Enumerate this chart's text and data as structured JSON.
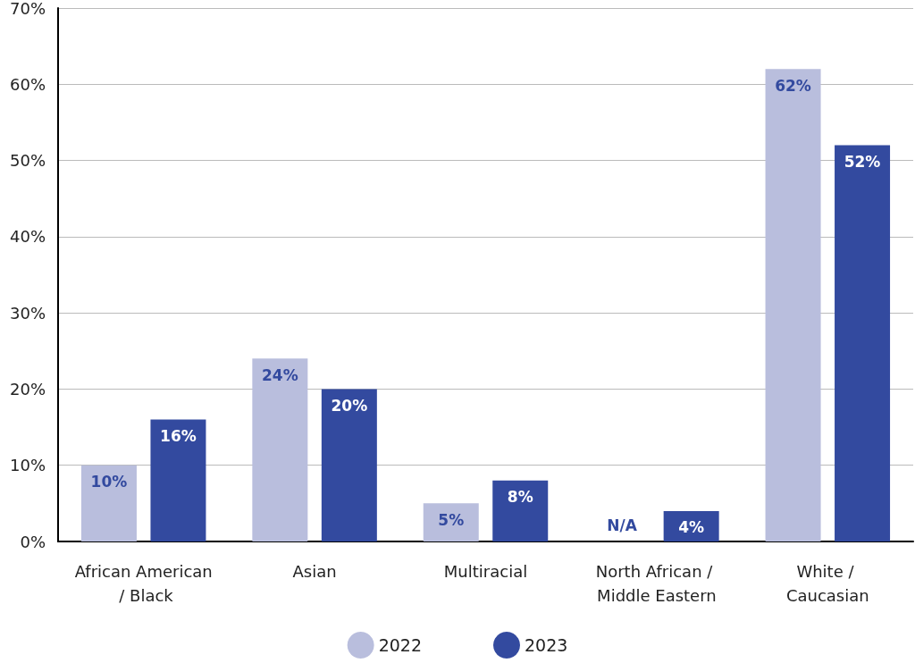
{
  "chart_data": {
    "type": "bar",
    "categories": [
      "African American / Black",
      "Asian",
      "Multiracial",
      "North African / Middle Eastern",
      "White / Caucasian"
    ],
    "series": [
      {
        "name": "2022",
        "color": "#b9bedd",
        "values": [
          10,
          24,
          5,
          null,
          62
        ],
        "value_labels": [
          "10%",
          "24%",
          "5%",
          "N/A",
          "62%"
        ]
      },
      {
        "name": "2023",
        "color": "#334a9f",
        "values": [
          16,
          20,
          8,
          4,
          52
        ],
        "value_labels": [
          "16%",
          "20%",
          "8%",
          "4%",
          "52%"
        ]
      }
    ],
    "ylim": [
      0,
      70
    ],
    "yticks": [
      {
        "value": 0,
        "label": "0%"
      },
      {
        "value": 10,
        "label": "10%"
      },
      {
        "value": 20,
        "label": "20%"
      },
      {
        "value": 30,
        "label": "30%"
      },
      {
        "value": 40,
        "label": "40%"
      },
      {
        "value": 50,
        "label": "50%"
      },
      {
        "value": 60,
        "label": "60%"
      },
      {
        "value": 70,
        "label": "70%"
      }
    ],
    "grid": "y",
    "legend": "bottom"
  }
}
